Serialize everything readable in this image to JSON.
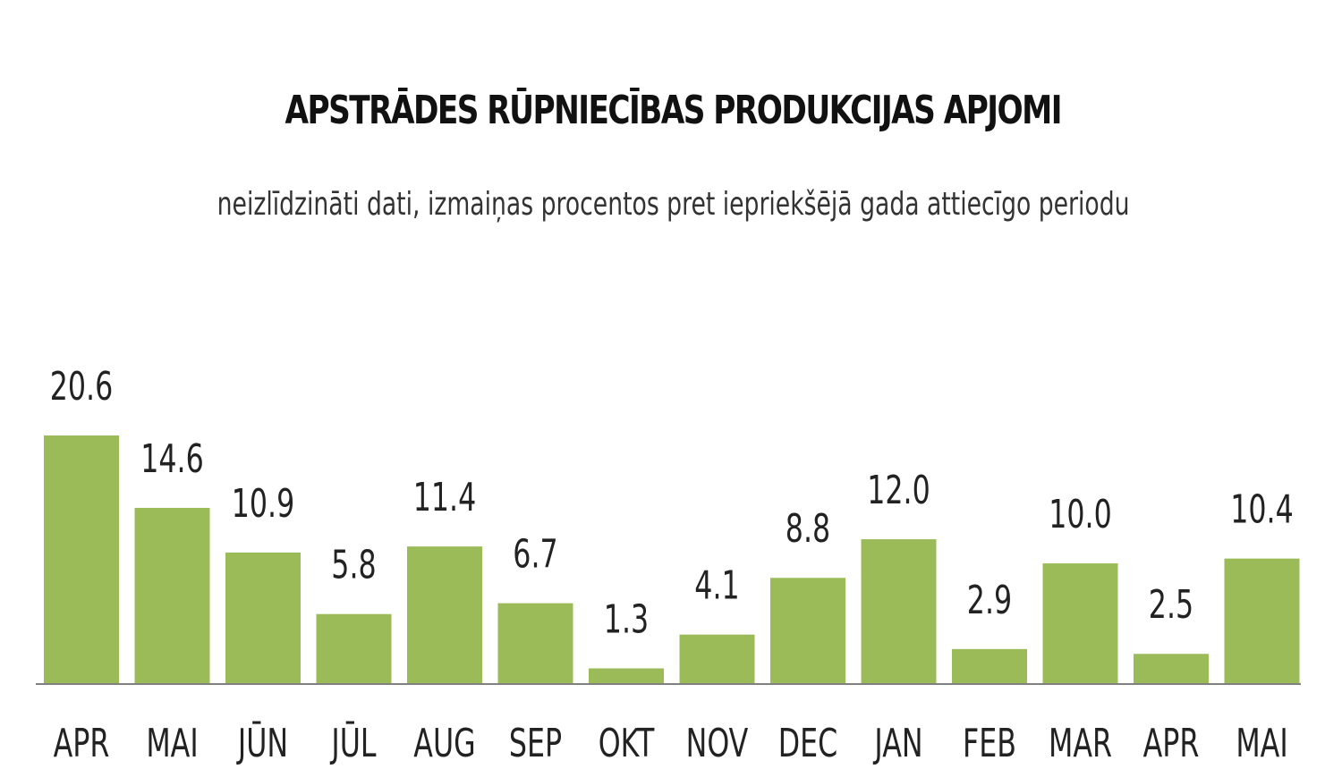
{
  "colors": {
    "bar": "#9bbb59",
    "axis": "#808080",
    "text": "#222222"
  },
  "chart_data": {
    "type": "bar",
    "title": "APSTRĀDES RŪPNIECĪBAS PRODUKCIJAS APJOMI",
    "subtitle": "neizlīdzināti dati, izmaiņas procentos pret iepriekšējā gada attiecīgo periodu",
    "xlabel": "",
    "ylabel": "",
    "ylim": [
      0,
      20.6
    ],
    "grid": false,
    "categories": [
      "APR",
      "MAI",
      "JŪN",
      "JŪL",
      "AUG",
      "SEP",
      "OKT",
      "NOV",
      "DEC",
      "JAN",
      "FEB",
      "MAR",
      "APR",
      "MAI"
    ],
    "values": [
      20.6,
      14.6,
      10.9,
      5.8,
      11.4,
      6.7,
      1.3,
      4.1,
      8.8,
      12.0,
      2.9,
      10.0,
      2.5,
      10.4
    ],
    "value_labels": [
      "20.6",
      "14.6",
      "10.9",
      "5.8",
      "11.4",
      "6.7",
      "1.3",
      "4.1",
      "8.8",
      "12.0",
      "2.9",
      "10.0",
      "2.5",
      "10.4"
    ]
  }
}
